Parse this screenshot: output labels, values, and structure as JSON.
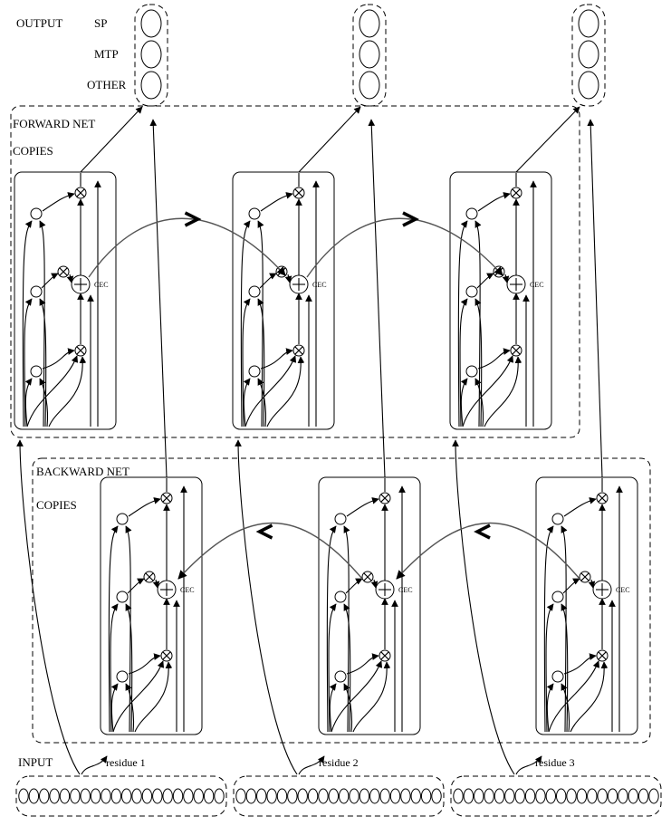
{
  "labels": {
    "output": "OUTPUT",
    "classes": [
      "SP",
      "MTP",
      "OTHER"
    ],
    "forward_net": "FORWARD NET",
    "forward_copies": "COPIES",
    "backward_net": "BACKWARD NET",
    "backward_copies": "COPIES",
    "cec": "CEC",
    "input": "INPUT",
    "residues": [
      "residue 1",
      "residue 2",
      "residue 3"
    ]
  },
  "counts": {
    "copies": 3,
    "output_units": 3,
    "input_units_per_residue": 20
  }
}
